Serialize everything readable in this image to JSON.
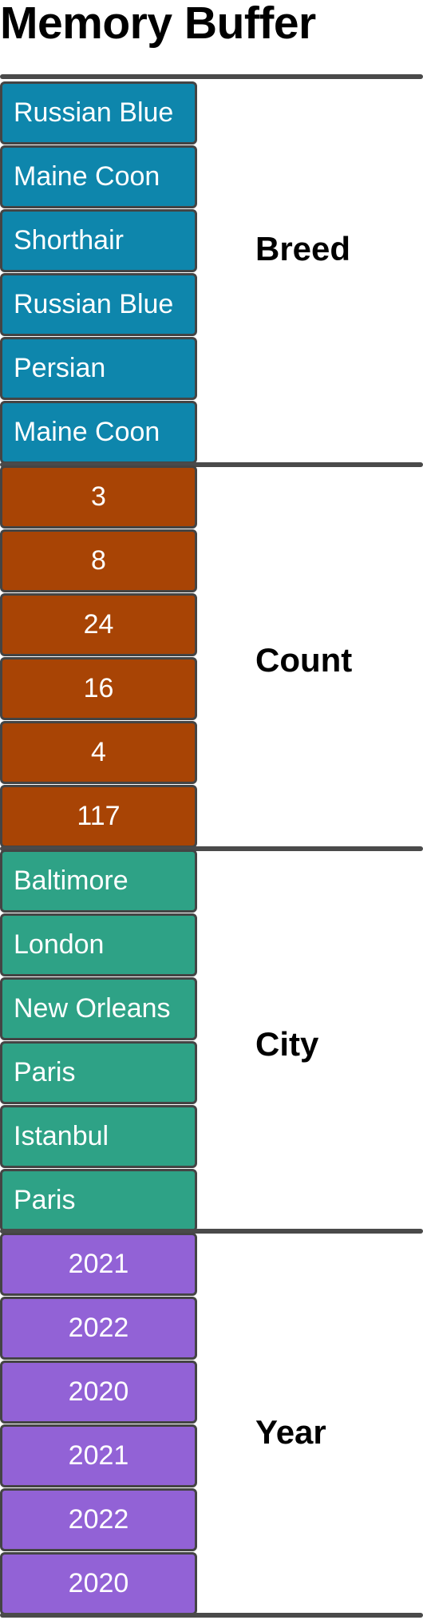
{
  "title": "Memory Buffer",
  "groups": [
    {
      "label": "Breed",
      "color": "#0e86ac",
      "align": "left",
      "cells": [
        "Russian Blue",
        "Maine Coon",
        "Shorthair",
        "Russian Blue",
        "Persian",
        "Maine Coon"
      ]
    },
    {
      "label": "Count",
      "color": "#a84405",
      "align": "center",
      "cells": [
        "3",
        "8",
        "24",
        "16",
        "4",
        "117"
      ]
    },
    {
      "label": "City",
      "color": "#2ea286",
      "align": "left",
      "cells": [
        "Baltimore",
        "London",
        "New Orleans",
        "Paris",
        "Istanbul",
        "Paris"
      ]
    },
    {
      "label": "Year",
      "color": "#9262d6",
      "align": "center",
      "cells": [
        "2021",
        "2022",
        "2020",
        "2021",
        "2022",
        "2020"
      ]
    }
  ]
}
